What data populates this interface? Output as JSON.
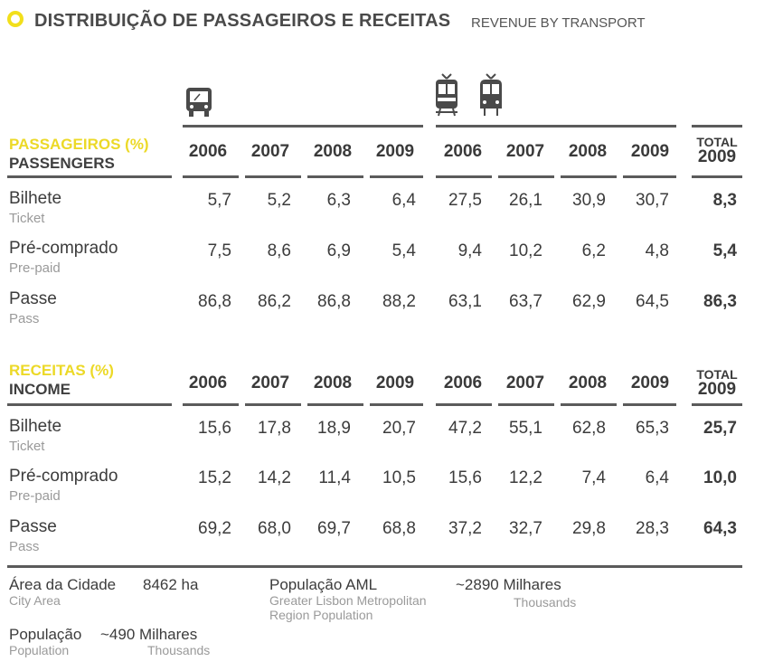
{
  "title": {
    "main": "DISTRIBUIÇÃO DE PASSAGEIROS E RECEITAS",
    "sub": "REVENUE BY TRANSPORT"
  },
  "icons": {
    "group1": "bus-icon",
    "group2": "tram-icon"
  },
  "years": [
    "2006",
    "2007",
    "2008",
    "2009",
    "2006",
    "2007",
    "2008",
    "2009"
  ],
  "total_label": {
    "line1": "TOTAL",
    "line2": "2009"
  },
  "passengers": {
    "header_pt": "PASSAGEIROS (%)",
    "header_en": "PASSENGERS",
    "rows": [
      {
        "label": "Bilhete",
        "sub": "Ticket",
        "values": [
          "5,7",
          "5,2",
          "6,3",
          "6,4",
          "27,5",
          "26,1",
          "30,9",
          "30,7"
        ],
        "total": "8,3"
      },
      {
        "label": "Pré-comprado",
        "sub": "Pre-paid",
        "values": [
          "7,5",
          "8,6",
          "6,9",
          "5,4",
          "9,4",
          "10,2",
          "6,2",
          "4,8"
        ],
        "total": "5,4"
      },
      {
        "label": "Passe",
        "sub": "Pass",
        "values": [
          "86,8",
          "86,2",
          "86,8",
          "88,2",
          "63,1",
          "63,7",
          "62,9",
          "64,5"
        ],
        "total": "86,3"
      }
    ]
  },
  "income": {
    "header_pt": "RECEITAS (%)",
    "header_en": "INCOME",
    "rows": [
      {
        "label": "Bilhete",
        "sub": "Ticket",
        "values": [
          "15,6",
          "17,8",
          "18,9",
          "20,7",
          "47,2",
          "55,1",
          "62,8",
          "65,3"
        ],
        "total": "25,7"
      },
      {
        "label": "Pré-comprado",
        "sub": "Pre-paid",
        "values": [
          "15,2",
          "14,2",
          "11,4",
          "10,5",
          "15,6",
          "12,2",
          "7,4",
          "6,4"
        ],
        "total": "10,0"
      },
      {
        "label": "Passe",
        "sub": "Pass",
        "values": [
          "69,2",
          "68,0",
          "69,7",
          "68,8",
          "37,2",
          "32,7",
          "29,8",
          "28,3"
        ],
        "total": "64,3"
      }
    ]
  },
  "footer": {
    "city_area": {
      "label": "Área da Cidade",
      "value": "8462 ha",
      "sub": "City Area"
    },
    "aml_population": {
      "label": "População AML",
      "sub1": "Greater Lisbon Metropolitan",
      "sub2": "Region Population",
      "value": "~2890 Milhares",
      "value_sub": "Thousands"
    },
    "population": {
      "label": "População",
      "value": "~490 Milhares",
      "sub": "Population",
      "value_sub": "Thousands"
    }
  }
}
